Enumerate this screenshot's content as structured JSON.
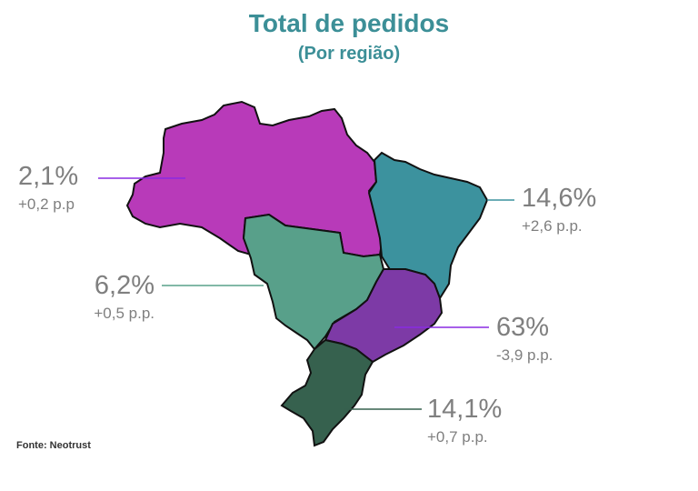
{
  "title": "Total de pedidos",
  "subtitle": "(Por região)",
  "source": "Fonte: Neotrust",
  "regions": [
    {
      "id": "norte",
      "percent": "2,1%",
      "change": "+0,2 p.p",
      "color": "#b83ab9"
    },
    {
      "id": "nordeste",
      "percent": "14,6%",
      "change": "+2,6 p.p.",
      "color": "#3c929e"
    },
    {
      "id": "centro-oeste",
      "percent": "6,2%",
      "change": "+0,5 p.p.",
      "color": "#58a08a"
    },
    {
      "id": "sudeste",
      "percent": "63%",
      "change": "-3,9 p.p.",
      "color": "#7d3aa6"
    },
    {
      "id": "sul",
      "percent": "14,1%",
      "change": "+0,7 p.p.",
      "color": "#36614e"
    }
  ]
}
